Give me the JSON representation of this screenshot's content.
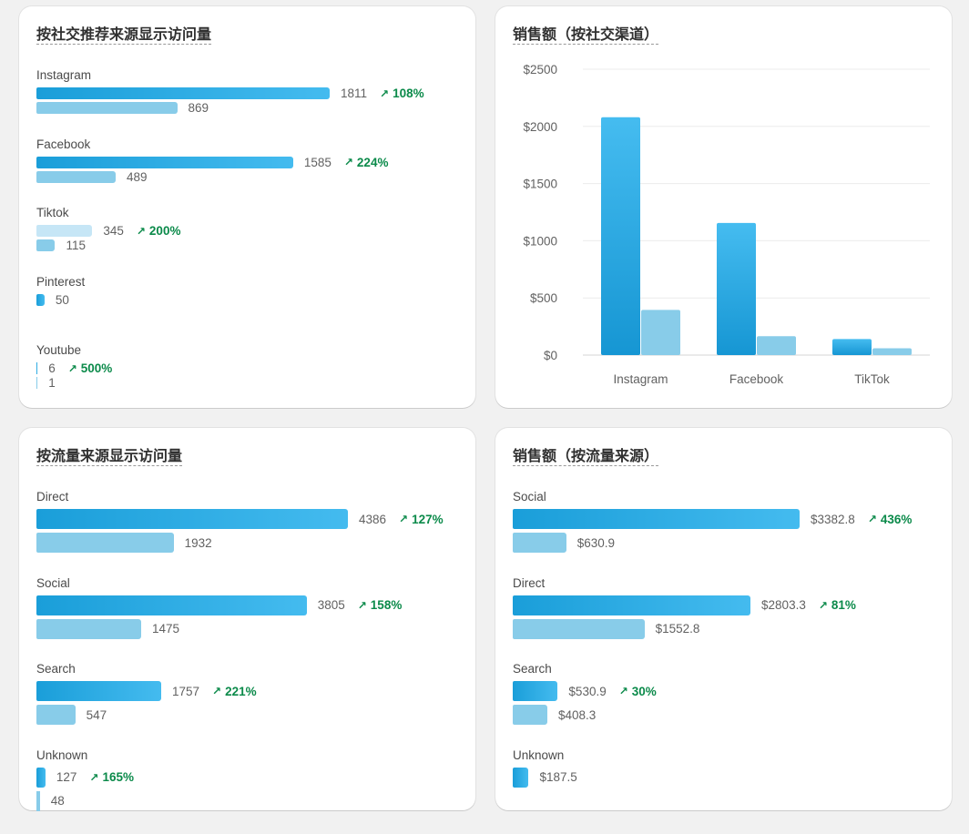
{
  "colors": {
    "primary_bar": "#2aa8e0",
    "secondary_bar": "#88cce9",
    "positive_delta": "#0b8a4a"
  },
  "social_visits": {
    "title": "按社交推荐来源显示访问量",
    "max": 1811,
    "groups": [
      {
        "label": "Instagram",
        "current": 1811,
        "current_text": "1811",
        "previous": 869,
        "previous_text": "869",
        "delta": "108%"
      },
      {
        "label": "Facebook",
        "current": 1585,
        "current_text": "1585",
        "previous": 489,
        "previous_text": "489",
        "delta": "224%"
      },
      {
        "label": "Tiktok",
        "current": 345,
        "current_text": "345",
        "previous": 115,
        "previous_text": "115",
        "delta": "200%"
      },
      {
        "label": "Pinterest",
        "current": 50,
        "current_text": "50",
        "previous": null,
        "previous_text": "",
        "delta": ""
      },
      {
        "label": "Youtube",
        "current": 6,
        "current_text": "6",
        "previous": 1,
        "previous_text": "1",
        "delta": "500%"
      }
    ]
  },
  "social_sales": {
    "title": "销售额（按社交渠道）",
    "chart_data": {
      "type": "bar",
      "title": "销售额（按社交渠道）",
      "categories": [
        "Instagram",
        "Facebook",
        "TikTok"
      ],
      "series": [
        {
          "name": "current",
          "values": [
            2080,
            1155,
            140
          ]
        },
        {
          "name": "previous",
          "values": [
            395,
            165,
            60
          ]
        }
      ],
      "ylim": [
        0,
        2500
      ],
      "yticks": [
        0,
        500,
        1000,
        1500,
        2000,
        2500
      ],
      "ytick_labels": [
        "$0",
        "$500",
        "$1000",
        "$1500",
        "$2000",
        "$2500"
      ],
      "grid": true,
      "xlabel": "",
      "ylabel": ""
    }
  },
  "traffic_visits": {
    "title": "按流量来源显示访问量",
    "max": 4386,
    "groups": [
      {
        "label": "Direct",
        "current": 4386,
        "current_text": "4386",
        "previous": 1932,
        "previous_text": "1932",
        "delta": "127%"
      },
      {
        "label": "Social",
        "current": 3805,
        "current_text": "3805",
        "previous": 1475,
        "previous_text": "1475",
        "delta": "158%"
      },
      {
        "label": "Search",
        "current": 1757,
        "current_text": "1757",
        "previous": 547,
        "previous_text": "547",
        "delta": "221%"
      },
      {
        "label": "Unknown",
        "current": 127,
        "current_text": "127",
        "previous": 48,
        "previous_text": "48",
        "delta": "165%"
      }
    ]
  },
  "traffic_sales": {
    "title": "销售额（按流量来源）",
    "max": 3382.8,
    "groups": [
      {
        "label": "Social",
        "current": 3382.8,
        "current_text": "$3382.8",
        "previous": 630.9,
        "previous_text": "$630.9",
        "delta": "436%"
      },
      {
        "label": "Direct",
        "current": 2803.3,
        "current_text": "$2803.3",
        "previous": 1552.8,
        "previous_text": "$1552.8",
        "delta": "81%"
      },
      {
        "label": "Search",
        "current": 530.9,
        "current_text": "$530.9",
        "previous": 408.3,
        "previous_text": "$408.3",
        "delta": "30%"
      },
      {
        "label": "Unknown",
        "current": 187.5,
        "current_text": "$187.5",
        "previous": null,
        "previous_text": "",
        "delta": ""
      }
    ]
  }
}
